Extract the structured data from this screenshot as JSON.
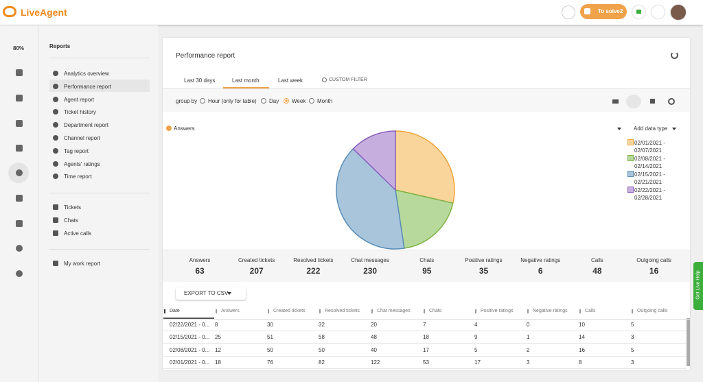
{
  "app": {
    "logo": "LiveAgent",
    "to_solve": "To solve",
    "to_solve_count": 2,
    "zoom": "80%",
    "live_help": "Get Live Help"
  },
  "nav": {
    "title": "Reports",
    "groups": [
      [
        "Analytics overview",
        "Performance report",
        "Agent report",
        "Ticket history",
        "Department report",
        "Channel report",
        "Tag report",
        "Agents' ratings",
        "Time report"
      ],
      [
        "Tickets",
        "Chats",
        "Active calls"
      ],
      [
        "My work report"
      ]
    ]
  },
  "report": {
    "title": "Performance report",
    "tabs": [
      "Last 30 days",
      "Last month",
      "Last week",
      "CUSTOM FILTER"
    ],
    "group_by": "group by",
    "group_options": [
      "Hour (only for table)",
      "Day",
      "Week",
      "Month"
    ],
    "add_data_type": "Add data type",
    "export": "EXPORT TO CSV"
  },
  "chart_data": {
    "type": "pie",
    "series_name": "Answers",
    "categories": [
      "02/01/2021 - 02/07/2021",
      "02/08/2021 - 02/14/2021",
      "02/15/2021 - 02/21/2021",
      "02/22/2021 - 02/28/2021"
    ],
    "values": [
      18,
      12,
      25,
      8
    ],
    "colors": [
      "#f9d59b",
      "#b8d99c",
      "#a9c5dc",
      "#c6afdf"
    ],
    "stroke_colors": [
      "#eea43a",
      "#7cb342",
      "#5a8db8",
      "#8c62c0"
    ]
  },
  "summary": [
    {
      "label": "Answers",
      "value": 63
    },
    {
      "label": "Created tickets",
      "value": 207
    },
    {
      "label": "Resolved tickets",
      "value": 222
    },
    {
      "label": "Chat messages",
      "value": 230
    },
    {
      "label": "Chats",
      "value": 95
    },
    {
      "label": "Positive ratings",
      "value": 35
    },
    {
      "label": "Negative ratings",
      "value": 6
    },
    {
      "label": "Calls",
      "value": 48
    },
    {
      "label": "Outgoing calls",
      "value": 16
    }
  ],
  "table": {
    "header": [
      "Date",
      "Answers",
      "Created tickets",
      "Resolved tickets",
      "Chat messages",
      "Chats",
      "Positive ratings",
      "Negative ratings",
      "Calls",
      "Outgoing calls"
    ],
    "rows": [
      [
        "02/22/2021 - 0...",
        8,
        30,
        32,
        20,
        7,
        4,
        0,
        10,
        5
      ],
      [
        "02/15/2021 - 0...",
        25,
        51,
        58,
        48,
        18,
        9,
        1,
        14,
        3
      ],
      [
        "02/08/2021 - 0...",
        12,
        50,
        50,
        40,
        17,
        5,
        2,
        16,
        5
      ],
      [
        "02/01/2021 - 0...",
        18,
        76,
        82,
        122,
        53,
        17,
        3,
        8,
        3
      ]
    ]
  }
}
